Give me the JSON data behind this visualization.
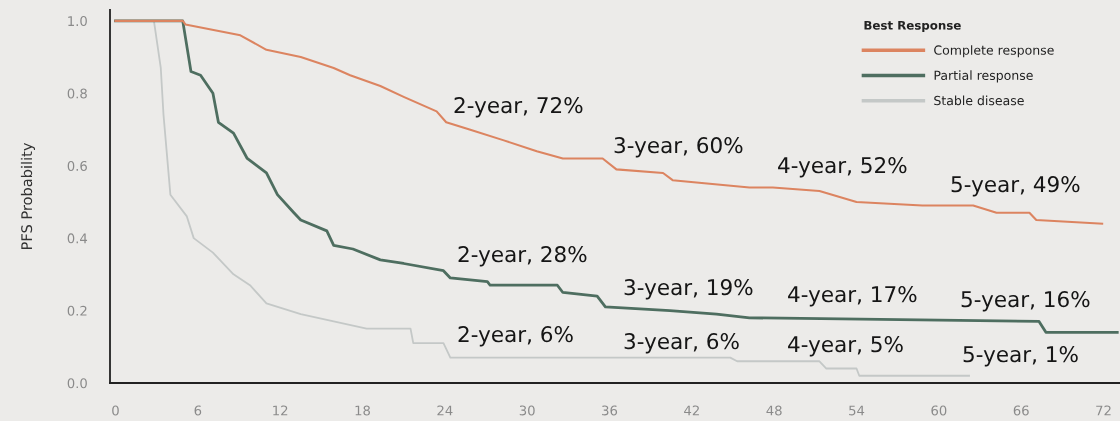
{
  "chart_data": {
    "type": "line",
    "ylabel": "PFS Probability",
    "legend_title": "Best Response",
    "legend": "top right",
    "xlim": [
      -0.4,
      73.2
    ],
    "xticks": [
      0,
      6,
      12,
      18,
      24,
      30,
      36,
      42,
      48,
      54,
      60,
      66,
      72
    ],
    "ylim": [
      0,
      1.03
    ],
    "yticks": [
      {
        "value": 0,
        "label": "0.0"
      },
      0.2,
      0.4,
      0.6,
      0.8,
      {
        "value": 1,
        "label": "1.0"
      }
    ],
    "series": [
      {
        "name": "Complete response",
        "color": "#dc8460",
        "x": [
          0,
          4.9,
          5.1,
          9.1,
          11.0,
          13.5,
          15.9,
          17.1,
          19.3,
          21.0,
          23.4,
          24.1,
          25.8,
          28.3,
          30.7,
          32.6,
          35.5,
          36.5,
          39.9,
          40.6,
          43.3,
          46.2,
          47.9,
          51.3,
          54.0,
          58.8,
          62.5,
          64.2,
          66.6,
          67.1,
          71.9
        ],
        "values": [
          1.0,
          1.0,
          0.99,
          0.96,
          0.92,
          0.9,
          0.87,
          0.85,
          0.82,
          0.79,
          0.75,
          0.72,
          0.7,
          0.67,
          0.64,
          0.62,
          0.62,
          0.59,
          0.58,
          0.56,
          0.55,
          0.54,
          0.54,
          0.53,
          0.5,
          0.49,
          0.49,
          0.47,
          0.47,
          0.45,
          0.44
        ]
      },
      {
        "name": "Partial response",
        "color": "#4e6e60",
        "x": [
          0,
          4.9,
          5.5,
          6.2,
          7.1,
          7.5,
          8.6,
          9.6,
          11.0,
          11.8,
          13.0,
          13.5,
          15.4,
          15.9,
          17.3,
          19.3,
          21.0,
          23.9,
          24.4,
          27.1,
          27.3,
          32.2,
          32.6,
          35.1,
          35.7,
          40.4,
          43.8,
          46.2,
          67.3,
          67.8,
          73.0
        ],
        "values": [
          1.0,
          1.0,
          0.86,
          0.85,
          0.8,
          0.72,
          0.69,
          0.62,
          0.58,
          0.52,
          0.47,
          0.45,
          0.42,
          0.38,
          0.37,
          0.34,
          0.33,
          0.31,
          0.29,
          0.28,
          0.27,
          0.27,
          0.25,
          0.24,
          0.21,
          0.2,
          0.19,
          0.18,
          0.17,
          0.14,
          0.14
        ]
      },
      {
        "name": "Stable disease",
        "color": "#c4c8c7",
        "x": [
          0,
          2.8,
          3.3,
          3.5,
          4.0,
          5.2,
          5.7,
          7.1,
          8.6,
          9.8,
          11.0,
          13.5,
          15.9,
          18.3,
          21.5,
          21.7,
          23.9,
          24.4,
          44.8,
          45.3,
          51.3,
          51.8,
          54.0,
          54.2,
          62.2
        ],
        "values": [
          1.0,
          1.0,
          0.87,
          0.74,
          0.52,
          0.46,
          0.4,
          0.36,
          0.3,
          0.27,
          0.22,
          0.19,
          0.17,
          0.15,
          0.15,
          0.11,
          0.11,
          0.07,
          0.07,
          0.06,
          0.06,
          0.04,
          0.04,
          0.02,
          0.02
        ]
      }
    ],
    "annotations": [
      "2-year, 72%",
      "3-year, 60%",
      "4-year, 52%",
      "5-year, 49%",
      "2-year, 28%",
      "3-year, 19%",
      "4-year, 17%",
      "5-year, 16%",
      "2-year, 6%",
      "3-year, 6%",
      "4-year, 5%",
      "5-year, 1%"
    ]
  }
}
